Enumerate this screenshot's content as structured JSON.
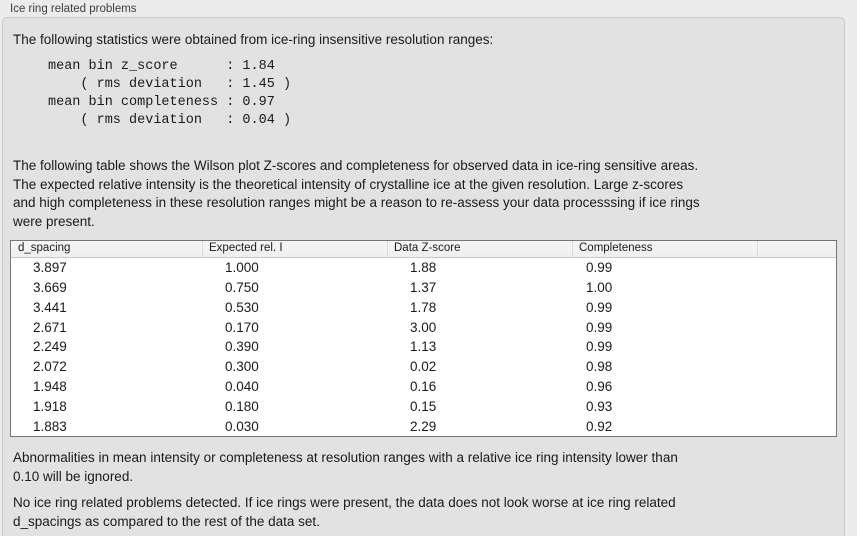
{
  "panel": {
    "title": "Ice ring related problems"
  },
  "intro": "The following statistics were obtained from ice-ring insensitive resolution ranges:",
  "stats_block": [
    "mean bin z_score      : 1.84",
    "    ( rms deviation   : 1.45 )",
    "mean bin completeness : 0.97",
    "    ( rms deviation   : 0.04 )"
  ],
  "table_intro": [
    "The following table shows the Wilson plot Z-scores and completeness for observed data in ice-ring sensitive areas.",
    "The expected relative intensity is the theoretical intensity of crystalline ice at the given resolution. Large z-scores",
    "and high completeness in these resolution ranges might be a reason to re-assess your data processsing if ice rings",
    "were present."
  ],
  "table": {
    "columns": [
      "d_spacing",
      "Expected rel. I",
      "Data Z-score",
      "Completeness"
    ],
    "rows": [
      [
        "3.897",
        "1.000",
        "1.88",
        "0.99"
      ],
      [
        "3.669",
        "0.750",
        "1.37",
        "1.00"
      ],
      [
        "3.441",
        "0.530",
        "1.78",
        "0.99"
      ],
      [
        "2.671",
        "0.170",
        "3.00",
        "0.99"
      ],
      [
        "2.249",
        "0.390",
        "1.13",
        "0.99"
      ],
      [
        "2.072",
        "0.300",
        "0.02",
        "0.98"
      ],
      [
        "1.948",
        "0.040",
        "0.16",
        "0.96"
      ],
      [
        "1.918",
        "0.180",
        "0.15",
        "0.93"
      ],
      [
        "1.883",
        "0.030",
        "2.29",
        "0.92"
      ]
    ]
  },
  "notes": {
    "ignore_note": [
      "Abnormalities in mean intensity or completeness at resolution ranges with a relative ice ring intensity lower than",
      "0.10 will be ignored."
    ],
    "verdict": [
      "No ice ring related problems detected. If ice rings were present, the data does not look worse at ice ring related",
      "d_spacings as compared to the rest of the data set."
    ]
  },
  "colors": {
    "window_bg": "#ececec",
    "groupbox_bg": "#e2e2e2",
    "groupbox_border": "#c9c9c9",
    "table_border": "#757575",
    "header_bg": "#f5f5f5",
    "header_divider": "#d9d9d9",
    "row_bg": "#ffffff",
    "text": "#1a1a1a",
    "title_text": "#3e3e3e"
  }
}
